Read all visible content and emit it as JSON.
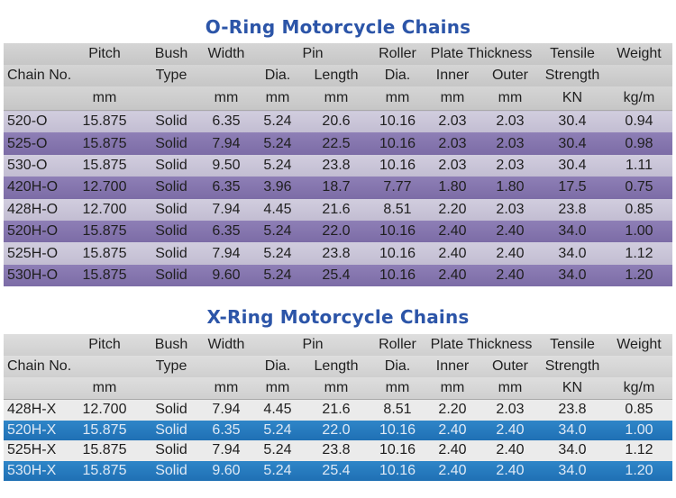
{
  "oring": {
    "title": "O-Ring Motorcycle Chains",
    "header": {
      "pitch": "Pitch",
      "bush": "Bush",
      "width": "Width",
      "pin": "Pin",
      "roller": "Roller",
      "plate_thickness": "Plate Thickness",
      "tensile": "Tensile",
      "weight": "Weight",
      "chain_no": "Chain No.",
      "type": "Type",
      "dia": "Dia.",
      "length": "Length",
      "roller_dia": "Dia.",
      "inner": "Inner",
      "outer": "Outer",
      "strength": "Strength",
      "u_pitch": "mm",
      "u_width": "mm",
      "u_pin_dia": "mm",
      "u_pin_len": "mm",
      "u_roller": "mm",
      "u_inner": "mm",
      "u_outer": "mm",
      "u_tensile": "KN",
      "u_weight": "kg/m"
    },
    "rows": [
      {
        "chain": "520-O",
        "pitch": "15.875",
        "bush": "Solid",
        "width": "6.35",
        "pin_dia": "5.24",
        "pin_len": "20.6",
        "roller": "10.16",
        "inner": "2.03",
        "outer": "2.03",
        "tensile": "30.4",
        "weight": "0.94"
      },
      {
        "chain": "525-O",
        "pitch": "15.875",
        "bush": "Solid",
        "width": "7.94",
        "pin_dia": "5.24",
        "pin_len": "22.5",
        "roller": "10.16",
        "inner": "2.03",
        "outer": "2.03",
        "tensile": "30.4",
        "weight": "0.98"
      },
      {
        "chain": "530-O",
        "pitch": "15.875",
        "bush": "Solid",
        "width": "9.50",
        "pin_dia": "5.24",
        "pin_len": "23.8",
        "roller": "10.16",
        "inner": "2.03",
        "outer": "2.03",
        "tensile": "30.4",
        "weight": "1.11"
      },
      {
        "chain": "420H-O",
        "pitch": "12.700",
        "bush": "Solid",
        "width": "6.35",
        "pin_dia": "3.96",
        "pin_len": "18.7",
        "roller": "7.77",
        "inner": "1.80",
        "outer": "1.80",
        "tensile": "17.5",
        "weight": "0.75"
      },
      {
        "chain": "428H-O",
        "pitch": "12.700",
        "bush": "Solid",
        "width": "7.94",
        "pin_dia": "4.45",
        "pin_len": "21.6",
        "roller": "8.51",
        "inner": "2.20",
        "outer": "2.03",
        "tensile": "23.8",
        "weight": "0.85"
      },
      {
        "chain": "520H-O",
        "pitch": "15.875",
        "bush": "Solid",
        "width": "6.35",
        "pin_dia": "5.24",
        "pin_len": "22.0",
        "roller": "10.16",
        "inner": "2.40",
        "outer": "2.40",
        "tensile": "34.0",
        "weight": "1.00"
      },
      {
        "chain": "525H-O",
        "pitch": "15.875",
        "bush": "Solid",
        "width": "7.94",
        "pin_dia": "5.24",
        "pin_len": "23.8",
        "roller": "10.16",
        "inner": "2.40",
        "outer": "2.40",
        "tensile": "34.0",
        "weight": "1.12"
      },
      {
        "chain": "530H-O",
        "pitch": "15.875",
        "bush": "Solid",
        "width": "9.60",
        "pin_dia": "5.24",
        "pin_len": "25.4",
        "roller": "10.16",
        "inner": "2.40",
        "outer": "2.40",
        "tensile": "34.0",
        "weight": "1.20"
      }
    ]
  },
  "xring": {
    "title": "X-Ring Motorcycle Chains",
    "header": {
      "pitch": "Pitch",
      "bush": "Bush",
      "width": "Width",
      "pin": "Pin",
      "roller": "Roller",
      "plate_thickness": "Plate Thickness",
      "tensile": "Tensile",
      "weight": "Weight",
      "chain_no": "Chain No.",
      "type": "Type",
      "dia": "Dia.",
      "length": "Length",
      "roller_dia": "Dia.",
      "inner": "Inner",
      "outer": "Outer",
      "strength": "Strength",
      "u_pitch": "mm",
      "u_width": "mm",
      "u_pin_dia": "mm",
      "u_pin_len": "mm",
      "u_roller": "mm",
      "u_inner": "mm",
      "u_outer": "mm",
      "u_tensile": "KN",
      "u_weight": "kg/m"
    },
    "rows": [
      {
        "chain": "428H-X",
        "pitch": "12.700",
        "bush": "Solid",
        "width": "7.94",
        "pin_dia": "4.45",
        "pin_len": "21.6",
        "roller": "8.51",
        "inner": "2.20",
        "outer": "2.03",
        "tensile": "23.8",
        "weight": "0.85"
      },
      {
        "chain": "520H-X",
        "pitch": "15.875",
        "bush": "Solid",
        "width": "6.35",
        "pin_dia": "5.24",
        "pin_len": "22.0",
        "roller": "10.16",
        "inner": "2.40",
        "outer": "2.40",
        "tensile": "34.0",
        "weight": "1.00"
      },
      {
        "chain": "525H-X",
        "pitch": "15.875",
        "bush": "Solid",
        "width": "7.94",
        "pin_dia": "5.24",
        "pin_len": "23.8",
        "roller": "10.16",
        "inner": "2.40",
        "outer": "2.40",
        "tensile": "34.0",
        "weight": "1.12"
      },
      {
        "chain": "530H-X",
        "pitch": "15.875",
        "bush": "Solid",
        "width": "9.60",
        "pin_dia": "5.24",
        "pin_len": "25.4",
        "roller": "10.16",
        "inner": "2.40",
        "outer": "2.40",
        "tensile": "34.0",
        "weight": "1.20"
      }
    ]
  }
}
